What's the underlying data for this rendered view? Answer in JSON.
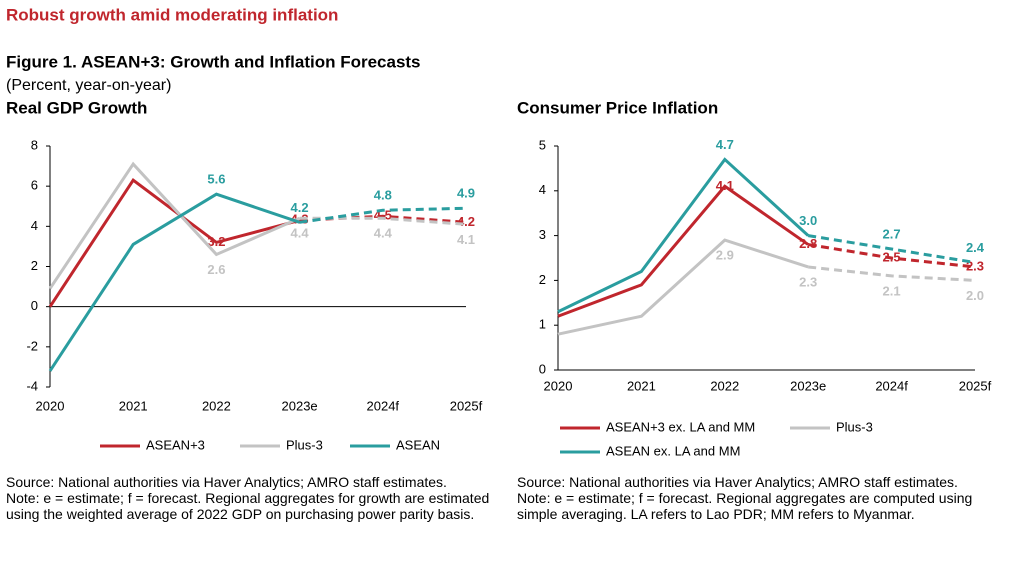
{
  "header": {
    "kicker": "Robust growth amid moderating inflation",
    "title": "Figure 1. ASEAN+3: Growth and Inflation Forecasts",
    "subtitle": "(Percent, year-on-year)"
  },
  "chart_data": [
    {
      "type": "line",
      "title": "Real GDP Growth",
      "categories": [
        "2020",
        "2021",
        "2022",
        "2023e",
        "2024f",
        "2025f"
      ],
      "dashed_from": "2023e",
      "ylim": [
        -4,
        8
      ],
      "yticks": [
        -4,
        -2,
        0,
        2,
        4,
        6,
        8
      ],
      "series": [
        {
          "name": "ASEAN+3",
          "color": "#c0262d",
          "values": [
            0,
            6.3,
            3.2,
            4.3,
            4.5,
            4.2
          ],
          "value_labels": [
            null,
            null,
            "3.2",
            "4.3",
            "4.5",
            "4.2"
          ]
        },
        {
          "name": "Plus-3",
          "color": "#c3c3c3",
          "values": [
            0.9,
            7.1,
            2.6,
            4.4,
            4.4,
            4.1
          ],
          "value_labels": [
            null,
            null,
            "2.6",
            "4.4",
            "4.4",
            "4.1"
          ]
        },
        {
          "name": "ASEAN",
          "color": "#2a9d9f",
          "values": [
            -3.2,
            3.1,
            5.6,
            4.2,
            4.8,
            4.9
          ],
          "value_labels": [
            null,
            null,
            "5.6",
            "4.2",
            "4.8",
            "4.9"
          ]
        }
      ],
      "source": "Source: National authorities via Haver Analytics; AMRO staff estimates.",
      "note": "Note: e = estimate; f = forecast. Regional aggregates for growth are estimated using the weighted average of 2022 GDP on purchasing power parity basis."
    },
    {
      "type": "line",
      "title": "Consumer Price Inflation",
      "categories": [
        "2020",
        "2021",
        "2022",
        "2023e",
        "2024f",
        "2025f"
      ],
      "dashed_from": "2023e",
      "ylim": [
        0,
        5
      ],
      "yticks": [
        0,
        1,
        2,
        3,
        4,
        5
      ],
      "series": [
        {
          "name": "ASEAN+3 ex. LA and MM",
          "color": "#c0262d",
          "values": [
            1.2,
            1.9,
            4.1,
            2.8,
            2.5,
            2.3
          ],
          "value_labels": [
            null,
            null,
            "4.1",
            "2.8",
            "2.5",
            "2.3"
          ]
        },
        {
          "name": "Plus-3",
          "color": "#c3c3c3",
          "values": [
            0.8,
            1.2,
            2.9,
            2.3,
            2.1,
            2
          ],
          "value_labels": [
            null,
            null,
            "2.9",
            "2.3",
            "2.1",
            "2.0"
          ]
        },
        {
          "name": "ASEAN ex. LA and MM",
          "color": "#2a9d9f",
          "values": [
            1.3,
            2.2,
            4.7,
            3,
            2.7,
            2.4
          ],
          "value_labels": [
            null,
            null,
            "4.7",
            "3.0",
            "2.7",
            "2.4"
          ]
        }
      ],
      "source": "Source: National authorities via Haver Analytics; AMRO staff estimates.",
      "note": "Note: e = estimate; f = forecast. Regional aggregates are computed using simple averaging. LA refers to Lao PDR; MM refers to Myanmar."
    }
  ]
}
